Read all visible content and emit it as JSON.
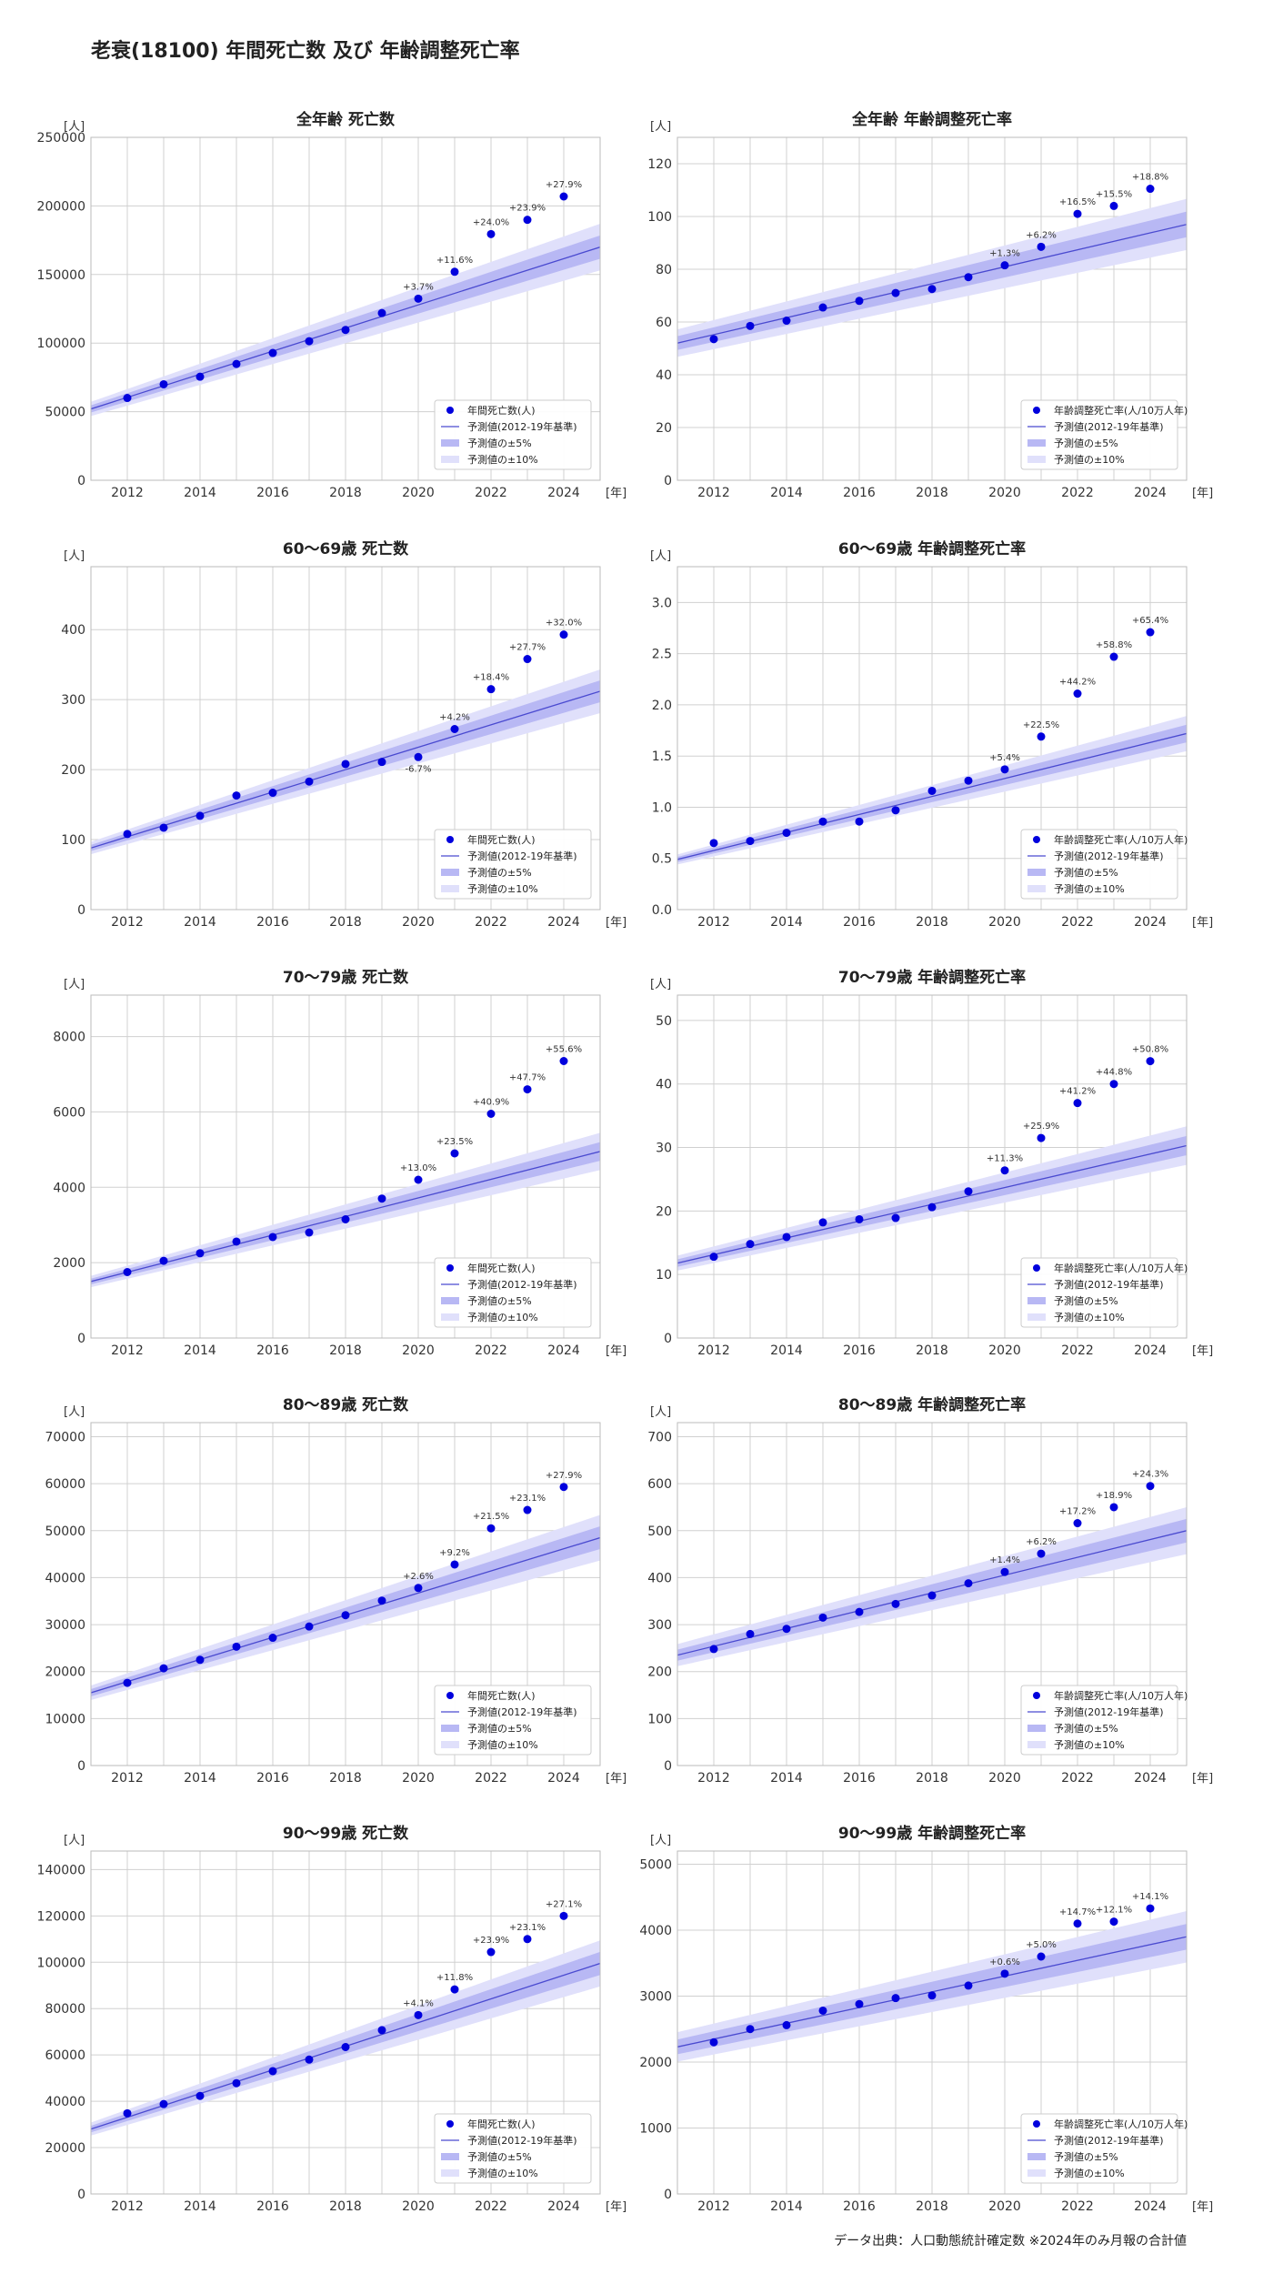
{
  "page": {
    "title": "老衰(18100) 年間死亡数 及び 年齢調整死亡率",
    "footer": "データ出典：人口動態統計確定数 ※2024年のみ月報の合計値"
  },
  "colors": {
    "point": "#0000dd",
    "line": "#4a4ad0",
    "band5": "#b8b8f4",
    "band10": "#e0e0fb",
    "grid": "#d0d0d0",
    "axis": "#bbbbbb"
  },
  "chart_data": [
    {
      "type": "scatter",
      "title": "全年齢 死亡数",
      "ylabel": "[人]",
      "xlabel": "[年]",
      "ylim": [
        0,
        250000
      ],
      "yticks": [
        0,
        50000,
        100000,
        150000,
        200000,
        250000
      ],
      "xlim": [
        2011,
        2025
      ],
      "xticks": [
        2012,
        2014,
        2016,
        2018,
        2020,
        2022,
        2024
      ],
      "x": [
        2012,
        2013,
        2014,
        2015,
        2016,
        2017,
        2018,
        2019,
        2020,
        2021,
        2022,
        2023,
        2024
      ],
      "values": [
        60000,
        70000,
        75500,
        84800,
        92800,
        101400,
        109600,
        121900,
        132400,
        152000,
        179500,
        189900,
        206900
      ],
      "trend": {
        "x0": 2011,
        "y0": 52000,
        "x1": 2025,
        "y1": 170000
      },
      "annotations": [
        {
          "x": 2020,
          "label": "+3.7%"
        },
        {
          "x": 2021,
          "label": "+11.6%"
        },
        {
          "x": 2022,
          "label": "+24.0%"
        },
        {
          "x": 2023,
          "label": "+23.9%"
        },
        {
          "x": 2024,
          "label": "+27.9%"
        }
      ],
      "legend": [
        "年間死亡数(人)",
        "予測値(2012-19年基準)",
        "予測値の±5%",
        "予測値の±10%"
      ]
    },
    {
      "type": "scatter",
      "title": "全年齢 年齢調整死亡率",
      "ylabel": "[人]",
      "xlabel": "[年]",
      "ylim": [
        0,
        130
      ],
      "yticks": [
        0,
        20,
        40,
        60,
        80,
        100,
        120
      ],
      "xlim": [
        2011,
        2025
      ],
      "xticks": [
        2012,
        2014,
        2016,
        2018,
        2020,
        2022,
        2024
      ],
      "x": [
        2012,
        2013,
        2014,
        2015,
        2016,
        2017,
        2018,
        2019,
        2020,
        2021,
        2022,
        2023,
        2024
      ],
      "values": [
        53.5,
        58.5,
        60.5,
        65.5,
        68,
        71,
        72.5,
        77,
        81.5,
        88.5,
        101,
        104,
        110.5
      ],
      "trend": {
        "x0": 2011,
        "y0": 52,
        "x1": 2025,
        "y1": 97
      },
      "annotations": [
        {
          "x": 2020,
          "label": "+1.3%"
        },
        {
          "x": 2021,
          "label": "+6.2%"
        },
        {
          "x": 2022,
          "label": "+16.5%"
        },
        {
          "x": 2023,
          "label": "+15.5%"
        },
        {
          "x": 2024,
          "label": "+18.8%"
        }
      ],
      "legend": [
        "年齢調整死亡率(人/10万人年)",
        "予測値(2012-19年基準)",
        "予測値の±5%",
        "予測値の±10%"
      ]
    },
    {
      "type": "scatter",
      "title": "60～69歳 死亡数",
      "ylabel": "[人]",
      "xlabel": "[年]",
      "ylim": [
        0,
        490
      ],
      "yticks": [
        0,
        100,
        200,
        300,
        400
      ],
      "xlim": [
        2011,
        2025
      ],
      "xticks": [
        2012,
        2014,
        2016,
        2018,
        2020,
        2022,
        2024
      ],
      "x": [
        2012,
        2013,
        2014,
        2015,
        2016,
        2017,
        2018,
        2019,
        2020,
        2021,
        2022,
        2023,
        2024
      ],
      "values": [
        108,
        117,
        134,
        163,
        167,
        183,
        208,
        211,
        218,
        258,
        315,
        358,
        393
      ],
      "trend": {
        "x0": 2011,
        "y0": 88,
        "x1": 2025,
        "y1": 312
      },
      "annotations": [
        {
          "x": 2020,
          "label": "-6.7%",
          "below": true
        },
        {
          "x": 2021,
          "label": "+4.2%"
        },
        {
          "x": 2022,
          "label": "+18.4%"
        },
        {
          "x": 2023,
          "label": "+27.7%"
        },
        {
          "x": 2024,
          "label": "+32.0%"
        }
      ],
      "legend": [
        "年間死亡数(人)",
        "予測値(2012-19年基準)",
        "予測値の±5%",
        "予測値の±10%"
      ]
    },
    {
      "type": "scatter",
      "title": "60～69歳 年齢調整死亡率",
      "ylabel": "[人]",
      "xlabel": "[年]",
      "ylim": [
        0,
        3.35
      ],
      "yticks": [
        0.0,
        0.5,
        1.0,
        1.5,
        2.0,
        2.5,
        3.0
      ],
      "tickDecimals": 1,
      "xlim": [
        2011,
        2025
      ],
      "xticks": [
        2012,
        2014,
        2016,
        2018,
        2020,
        2022,
        2024
      ],
      "x": [
        2012,
        2013,
        2014,
        2015,
        2016,
        2017,
        2018,
        2019,
        2020,
        2021,
        2022,
        2023,
        2024
      ],
      "values": [
        0.65,
        0.67,
        0.75,
        0.86,
        0.86,
        0.97,
        1.16,
        1.26,
        1.37,
        1.69,
        2.11,
        2.47,
        2.71
      ],
      "trend": {
        "x0": 2011,
        "y0": 0.49,
        "x1": 2025,
        "y1": 1.72
      },
      "annotations": [
        {
          "x": 2020,
          "label": "+5.4%"
        },
        {
          "x": 2021,
          "label": "+22.5%"
        },
        {
          "x": 2022,
          "label": "+44.2%"
        },
        {
          "x": 2023,
          "label": "+58.8%"
        },
        {
          "x": 2024,
          "label": "+65.4%"
        }
      ],
      "legend": [
        "年齢調整死亡率(人/10万人年)",
        "予測値(2012-19年基準)",
        "予測値の±5%",
        "予測値の±10%"
      ]
    },
    {
      "type": "scatter",
      "title": "70～79歳 死亡数",
      "ylabel": "[人]",
      "xlabel": "[年]",
      "ylim": [
        0,
        9100
      ],
      "yticks": [
        0,
        2000,
        4000,
        6000,
        8000
      ],
      "xlim": [
        2011,
        2025
      ],
      "xticks": [
        2012,
        2014,
        2016,
        2018,
        2020,
        2022,
        2024
      ],
      "x": [
        2012,
        2013,
        2014,
        2015,
        2016,
        2017,
        2018,
        2019,
        2020,
        2021,
        2022,
        2023,
        2024
      ],
      "values": [
        1750,
        2050,
        2250,
        2560,
        2680,
        2800,
        3150,
        3700,
        4200,
        4900,
        5950,
        6600,
        7350
      ],
      "trend": {
        "x0": 2011,
        "y0": 1500,
        "x1": 2025,
        "y1": 4950
      },
      "annotations": [
        {
          "x": 2020,
          "label": "+13.0%"
        },
        {
          "x": 2021,
          "label": "+23.5%"
        },
        {
          "x": 2022,
          "label": "+40.9%"
        },
        {
          "x": 2023,
          "label": "+47.7%"
        },
        {
          "x": 2024,
          "label": "+55.6%"
        }
      ],
      "legend": [
        "年間死亡数(人)",
        "予測値(2012-19年基準)",
        "予測値の±5%",
        "予測値の±10%"
      ]
    },
    {
      "type": "scatter",
      "title": "70～79歳 年齢調整死亡率",
      "ylabel": "[人]",
      "xlabel": "[年]",
      "ylim": [
        0,
        54
      ],
      "yticks": [
        0,
        10,
        20,
        30,
        40,
        50
      ],
      "xlim": [
        2011,
        2025
      ],
      "xticks": [
        2012,
        2014,
        2016,
        2018,
        2020,
        2022,
        2024
      ],
      "x": [
        2012,
        2013,
        2014,
        2015,
        2016,
        2017,
        2018,
        2019,
        2020,
        2021,
        2022,
        2023,
        2024
      ],
      "values": [
        12.8,
        14.8,
        15.9,
        18.2,
        18.7,
        18.9,
        20.6,
        23.1,
        26.4,
        31.5,
        37,
        40,
        43.6
      ],
      "trend": {
        "x0": 2011,
        "y0": 11.8,
        "x1": 2025,
        "y1": 30.3
      },
      "annotations": [
        {
          "x": 2020,
          "label": "+11.3%"
        },
        {
          "x": 2021,
          "label": "+25.9%"
        },
        {
          "x": 2022,
          "label": "+41.2%"
        },
        {
          "x": 2023,
          "label": "+44.8%"
        },
        {
          "x": 2024,
          "label": "+50.8%"
        }
      ],
      "legend": [
        "年齢調整死亡率(人/10万人年)",
        "予測値(2012-19年基準)",
        "予測値の±5%",
        "予測値の±10%"
      ]
    },
    {
      "type": "scatter",
      "title": "80～89歳 死亡数",
      "ylabel": "[人]",
      "xlabel": "[年]",
      "ylim": [
        0,
        73000
      ],
      "yticks": [
        0,
        10000,
        20000,
        30000,
        40000,
        50000,
        60000,
        70000
      ],
      "xlim": [
        2011,
        2025
      ],
      "xticks": [
        2012,
        2014,
        2016,
        2018,
        2020,
        2022,
        2024
      ],
      "x": [
        2012,
        2013,
        2014,
        2015,
        2016,
        2017,
        2018,
        2019,
        2020,
        2021,
        2022,
        2023,
        2024
      ],
      "values": [
        17600,
        20700,
        22500,
        25300,
        27200,
        29600,
        32000,
        35100,
        37800,
        42800,
        50500,
        54400,
        59300
      ],
      "trend": {
        "x0": 2011,
        "y0": 15500,
        "x1": 2025,
        "y1": 48500
      },
      "annotations": [
        {
          "x": 2020,
          "label": "+2.6%"
        },
        {
          "x": 2021,
          "label": "+9.2%"
        },
        {
          "x": 2022,
          "label": "+21.5%"
        },
        {
          "x": 2023,
          "label": "+23.1%"
        },
        {
          "x": 2024,
          "label": "+27.9%"
        }
      ],
      "legend": [
        "年間死亡数(人)",
        "予測値(2012-19年基準)",
        "予測値の±5%",
        "予測値の±10%"
      ]
    },
    {
      "type": "scatter",
      "title": "80～89歳 年齢調整死亡率",
      "ylabel": "[人]",
      "xlabel": "[年]",
      "ylim": [
        0,
        730
      ],
      "yticks": [
        0,
        100,
        200,
        300,
        400,
        500,
        600,
        700
      ],
      "xlim": [
        2011,
        2025
      ],
      "xticks": [
        2012,
        2014,
        2016,
        2018,
        2020,
        2022,
        2024
      ],
      "x": [
        2012,
        2013,
        2014,
        2015,
        2016,
        2017,
        2018,
        2019,
        2020,
        2021,
        2022,
        2023,
        2024
      ],
      "values": [
        248,
        280,
        291,
        315,
        327,
        344,
        362,
        388,
        412,
        451,
        516,
        550,
        595
      ],
      "trend": {
        "x0": 2011,
        "y0": 235,
        "x1": 2025,
        "y1": 500
      },
      "annotations": [
        {
          "x": 2020,
          "label": "+1.4%"
        },
        {
          "x": 2021,
          "label": "+6.2%"
        },
        {
          "x": 2022,
          "label": "+17.2%"
        },
        {
          "x": 2023,
          "label": "+18.9%"
        },
        {
          "x": 2024,
          "label": "+24.3%"
        }
      ],
      "legend": [
        "年齢調整死亡率(人/10万人年)",
        "予測値(2012-19年基準)",
        "予測値の±5%",
        "予測値の±10%"
      ]
    },
    {
      "type": "scatter",
      "title": "90～99歳 死亡数",
      "ylabel": "[人]",
      "xlabel": "[年]",
      "ylim": [
        0,
        148000
      ],
      "yticks": [
        0,
        20000,
        40000,
        60000,
        80000,
        100000,
        120000,
        140000
      ],
      "xlim": [
        2011,
        2025
      ],
      "xticks": [
        2012,
        2014,
        2016,
        2018,
        2020,
        2022,
        2024
      ],
      "x": [
        2012,
        2013,
        2014,
        2015,
        2016,
        2017,
        2018,
        2019,
        2020,
        2021,
        2022,
        2023,
        2024
      ],
      "values": [
        34800,
        38800,
        42300,
        47800,
        53000,
        58000,
        63400,
        70700,
        77200,
        88300,
        104400,
        110000,
        120000
      ],
      "trend": {
        "x0": 2011,
        "y0": 28000,
        "x1": 2025,
        "y1": 99500
      },
      "annotations": [
        {
          "x": 2020,
          "label": "+4.1%"
        },
        {
          "x": 2021,
          "label": "+11.8%"
        },
        {
          "x": 2022,
          "label": "+23.9%"
        },
        {
          "x": 2023,
          "label": "+23.1%"
        },
        {
          "x": 2024,
          "label": "+27.1%"
        }
      ],
      "legend": [
        "年間死亡数(人)",
        "予測値(2012-19年基準)",
        "予測値の±5%",
        "予測値の±10%"
      ]
    },
    {
      "type": "scatter",
      "title": "90～99歳 年齢調整死亡率",
      "ylabel": "[人]",
      "xlabel": "[年]",
      "ylim": [
        0,
        5200
      ],
      "yticks": [
        0,
        1000,
        2000,
        3000,
        4000,
        5000
      ],
      "xlim": [
        2011,
        2025
      ],
      "xticks": [
        2012,
        2014,
        2016,
        2018,
        2020,
        2022,
        2024
      ],
      "x": [
        2012,
        2013,
        2014,
        2015,
        2016,
        2017,
        2018,
        2019,
        2020,
        2021,
        2022,
        2023,
        2024
      ],
      "values": [
        2300,
        2500,
        2560,
        2780,
        2880,
        2970,
        3010,
        3160,
        3340,
        3600,
        4100,
        4130,
        4330
      ],
      "trend": {
        "x0": 2011,
        "y0": 2230,
        "x1": 2025,
        "y1": 3900
      },
      "annotations": [
        {
          "x": 2020,
          "label": "+0.6%"
        },
        {
          "x": 2021,
          "label": "+5.0%"
        },
        {
          "x": 2022,
          "label": "+14.7%"
        },
        {
          "x": 2023,
          "label": "+12.1%"
        },
        {
          "x": 2024,
          "label": "+14.1%"
        }
      ],
      "legend": [
        "年齢調整死亡率(人/10万人年)",
        "予測値(2012-19年基準)",
        "予測値の±5%",
        "予測値の±10%"
      ]
    }
  ]
}
